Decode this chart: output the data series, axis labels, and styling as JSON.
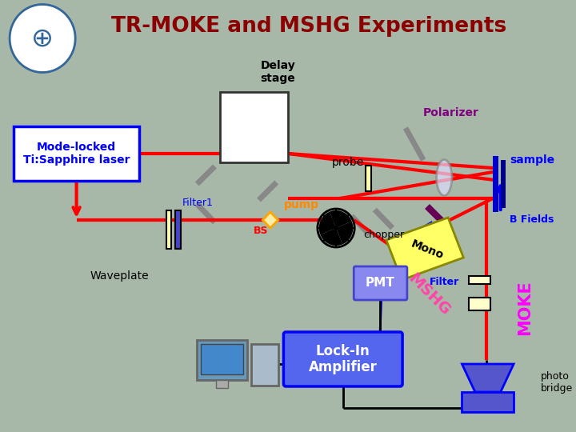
{
  "title": "TR-MOKE and MSHG Experiments",
  "title_color": "#8B0000",
  "bg_color": "#a8b8a8",
  "labels": {
    "delay_stage": "Delay\nstage",
    "polarizer": "Polarizer",
    "mode_locked": "Mode-locked\nTi:Sapphire laser",
    "probe": "probe",
    "sample": "sample",
    "filter1": "Filter1",
    "pump": "pump",
    "bs": "BS",
    "chopper": "chopper",
    "waveplate": "Waveplate",
    "filter": "Filter",
    "b_fields": "B Fields",
    "mono": "Mono",
    "pmt": "PMT",
    "mshg": "MSHG",
    "moke": "MOKE",
    "lock_in": "Lock-In\nAmplifier",
    "photo_bridge": "photo\nbridge"
  }
}
